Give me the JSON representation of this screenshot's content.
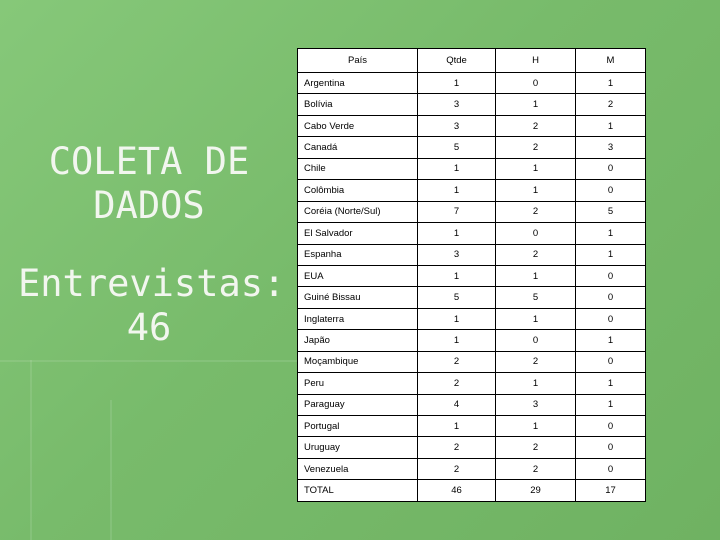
{
  "slide": {
    "title": "COLETA DE DADOS",
    "subtitle": "Entrevistas: 46"
  },
  "colors": {
    "background": "#79bd6d",
    "title_text": "#f2f6ef",
    "table_bg": "#ffffff"
  },
  "table": {
    "headers": [
      "País",
      "Qtde",
      "H",
      "M"
    ],
    "rows": [
      [
        "Argentina",
        "1",
        "0",
        "1"
      ],
      [
        "Bolívia",
        "3",
        "1",
        "2"
      ],
      [
        "Cabo Verde",
        "3",
        "2",
        "1"
      ],
      [
        "Canadá",
        "5",
        "2",
        "3"
      ],
      [
        "Chile",
        "1",
        "1",
        "0"
      ],
      [
        "Colômbia",
        "1",
        "1",
        "0"
      ],
      [
        "Coréia (Norte/Sul)",
        "7",
        "2",
        "5"
      ],
      [
        "El Salvador",
        "1",
        "0",
        "1"
      ],
      [
        "Espanha",
        "3",
        "2",
        "1"
      ],
      [
        "EUA",
        "1",
        "1",
        "0"
      ],
      [
        "Guiné Bissau",
        "5",
        "5",
        "0"
      ],
      [
        "Inglaterra",
        "1",
        "1",
        "0"
      ],
      [
        "Japão",
        "1",
        "0",
        "1"
      ],
      [
        "Moçambique",
        "2",
        "2",
        "0"
      ],
      [
        "Peru",
        "2",
        "1",
        "1"
      ],
      [
        "Paraguay",
        "4",
        "3",
        "1"
      ],
      [
        "Portugal",
        "1",
        "1",
        "0"
      ],
      [
        "Uruguay",
        "2",
        "2",
        "0"
      ],
      [
        "Venezuela",
        "2",
        "2",
        "0"
      ],
      [
        "TOTAL",
        "46",
        "29",
        "17"
      ]
    ]
  }
}
